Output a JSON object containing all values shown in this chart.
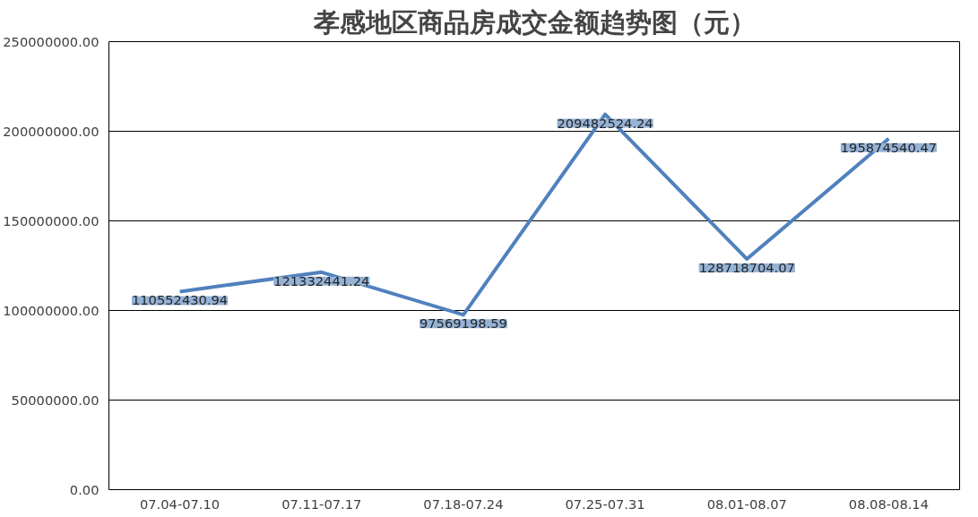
{
  "chart_data": {
    "type": "line",
    "title": "孝感地区商品房成交金额趋势图（元）",
    "categories": [
      "07.04-07.10",
      "07.11-07.17",
      "07.18-07.24",
      "07.25-07.31",
      "08.01-08.07",
      "08.08-08.14"
    ],
    "series": [
      {
        "color": "#4f81bd",
        "values": [
          110552430.94,
          121332441.24,
          97569198.59,
          209482524.24,
          128718704.07,
          195874540.47
        ]
      }
    ],
    "ylim": [
      0,
      250000000
    ],
    "yticks": [
      {
        "value": 0,
        "label": "0.00"
      },
      {
        "value": 50000000,
        "label": "50000000.00"
      },
      {
        "value": 100000000,
        "label": "100000000.00"
      },
      {
        "value": 150000000,
        "label": "150000000.00"
      },
      {
        "value": 200000000,
        "label": "200000000.00"
      },
      {
        "value": 250000000,
        "label": "250000000.00"
      }
    ],
    "grid": "y",
    "data_labels": true,
    "marker": "none",
    "line_style": "solid"
  }
}
